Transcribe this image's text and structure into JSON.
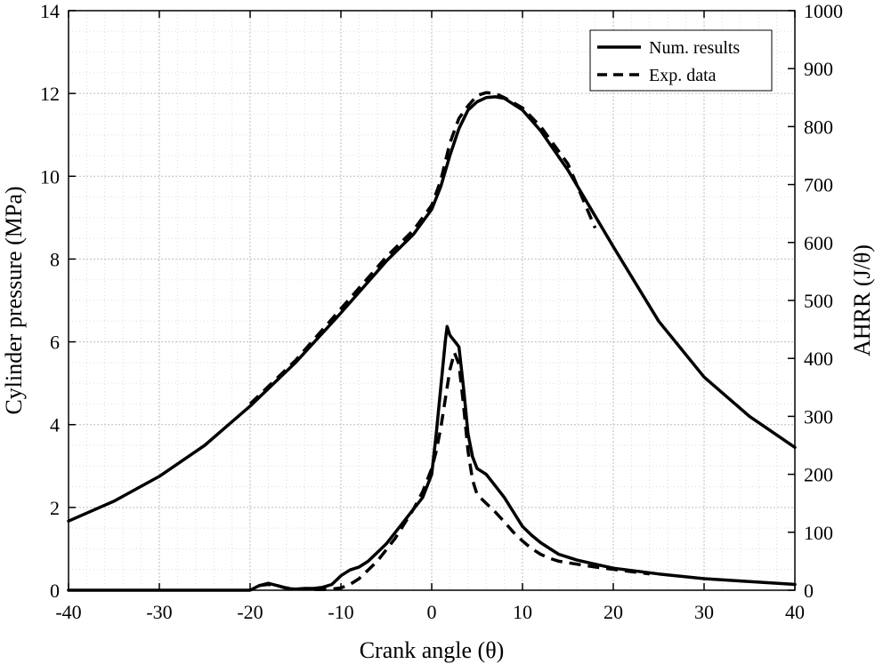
{
  "chart_data": {
    "type": "line",
    "xlabel": "Crank angle (θ)",
    "ylabel_left": "Cylinder pressure (MPa)",
    "ylabel_right": "AHRR (J/θ)",
    "xlim": [
      -40,
      40
    ],
    "ylim_left": [
      0,
      14
    ],
    "ylim_right": [
      0,
      1000
    ],
    "xticks": [
      "-40",
      "-30",
      "-20",
      "-10",
      "0",
      "10",
      "20",
      "30",
      "40"
    ],
    "yticks_left": [
      "0",
      "2",
      "4",
      "6",
      "8",
      "10",
      "12",
      "14"
    ],
    "yticks_right": [
      "0",
      "100",
      "200",
      "300",
      "400",
      "500",
      "600",
      "700",
      "800",
      "900",
      "1000"
    ],
    "grid": true,
    "legend_position": "top-right",
    "legend": [
      {
        "label": "Num. results",
        "style": "solid"
      },
      {
        "label": "Exp. data",
        "style": "dashed"
      }
    ],
    "series": [
      {
        "name": "Num. results",
        "quantity": "Cylinder pressure",
        "axis": "left",
        "style": "solid",
        "x": [
          -40,
          -35,
          -30,
          -25,
          -20,
          -15,
          -10,
          -5,
          -2,
          0,
          1,
          2,
          3,
          4,
          5,
          6,
          7,
          8,
          10,
          12,
          15,
          20,
          25,
          30,
          35,
          40
        ],
        "y": [
          1.67,
          2.15,
          2.75,
          3.5,
          4.45,
          5.5,
          6.7,
          7.95,
          8.6,
          9.2,
          9.75,
          10.5,
          11.15,
          11.6,
          11.8,
          11.9,
          11.92,
          11.88,
          11.6,
          11.1,
          10.15,
          8.3,
          6.5,
          5.15,
          4.2,
          3.45
        ]
      },
      {
        "name": "Exp. data",
        "quantity": "Cylinder pressure",
        "axis": "left",
        "style": "dashed",
        "x": [
          -20,
          -15,
          -10,
          -5,
          -2,
          0,
          1,
          2,
          3,
          4,
          5,
          6,
          7,
          8,
          10,
          12,
          15,
          18
        ],
        "y": [
          4.5,
          5.55,
          6.8,
          8.05,
          8.7,
          9.3,
          9.9,
          10.8,
          11.4,
          11.7,
          11.95,
          12.02,
          12.0,
          11.9,
          11.65,
          11.2,
          10.3,
          8.75
        ]
      },
      {
        "name": "Num. results",
        "quantity": "AHRR",
        "axis": "right",
        "style": "solid",
        "x": [
          -40,
          -20,
          -19,
          -18,
          -17,
          -16,
          -15,
          -14,
          -13,
          -12,
          -11,
          -10,
          -9,
          -8,
          -7,
          -6,
          -5,
          -4,
          -3,
          -2,
          -1,
          0,
          0.5,
          1,
          1.5,
          1.7,
          2,
          2.5,
          3,
          3.5,
          4,
          4.5,
          5,
          5.5,
          6,
          7,
          8,
          9,
          10,
          11,
          12,
          13,
          14,
          16,
          18,
          20,
          25,
          30,
          35,
          40
        ],
        "y": [
          0,
          0,
          8,
          12,
          8,
          3,
          2,
          3,
          3,
          5,
          10,
          25,
          35,
          40,
          50,
          65,
          80,
          100,
          120,
          140,
          160,
          200,
          270,
          350,
          430,
          455,
          440,
          430,
          420,
          350,
          270,
          230,
          210,
          205,
          200,
          180,
          160,
          135,
          110,
          95,
          82,
          72,
          62,
          52,
          45,
          38,
          28,
          20,
          15,
          10
        ]
      },
      {
        "name": "Exp. data",
        "quantity": "AHRR",
        "axis": "right",
        "style": "dashed",
        "x": [
          -19,
          -18,
          -17,
          -16,
          -15,
          -14,
          -13,
          -12,
          -11,
          -10,
          -9,
          -8,
          -7,
          -6,
          -5,
          -4,
          -3,
          -2,
          -1,
          0,
          0.5,
          1,
          1.5,
          2,
          2.5,
          3,
          3.5,
          4,
          4.5,
          5,
          6,
          7,
          8,
          9,
          10,
          11,
          12,
          13,
          14,
          16,
          18,
          20,
          22,
          24
        ],
        "y": [
          8,
          10,
          8,
          4,
          2,
          2,
          1,
          1,
          2,
          4,
          10,
          20,
          35,
          50,
          70,
          90,
          115,
          140,
          170,
          210,
          240,
          280,
          330,
          380,
          410,
          390,
          320,
          240,
          190,
          165,
          150,
          135,
          118,
          100,
          85,
          72,
          62,
          55,
          50,
          45,
          40,
          36,
          32,
          28
        ]
      }
    ]
  }
}
